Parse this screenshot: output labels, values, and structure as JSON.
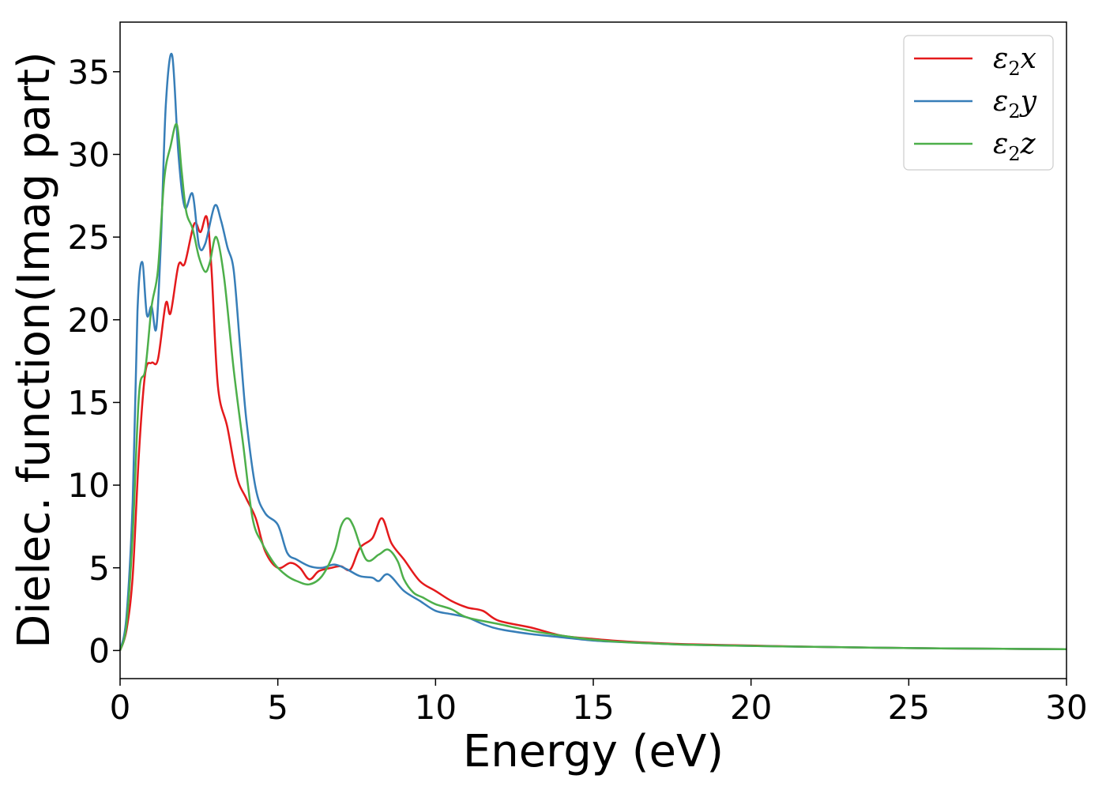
{
  "chart_data": {
    "type": "line",
    "title": "",
    "xlabel": "Energy (eV)",
    "ylabel": "Dielec. function(Imag part)",
    "xlim": [
      0,
      30
    ],
    "ylim": [
      -1.7,
      38
    ],
    "xticks": [
      0,
      5,
      10,
      15,
      20,
      25,
      30
    ],
    "yticks": [
      0,
      5,
      10,
      15,
      20,
      25,
      30,
      35
    ],
    "grid": false,
    "legend": "top-right",
    "series": [
      {
        "name": "ε₂x",
        "legend_base": "ε",
        "legend_sub": "2",
        "legend_var": "x",
        "color": "#e41a1c",
        "x": [
          0,
          0.2,
          0.4,
          0.6,
          0.8,
          1.0,
          1.2,
          1.45,
          1.6,
          1.85,
          2.05,
          2.35,
          2.55,
          2.75,
          2.9,
          3.1,
          3.4,
          3.7,
          4.0,
          4.3,
          4.6,
          5.0,
          5.4,
          5.7,
          6.0,
          6.3,
          6.7,
          7.0,
          7.3,
          7.6,
          8.0,
          8.3,
          8.6,
          9.0,
          9.5,
          10.0,
          10.5,
          11.0,
          11.5,
          12.0,
          13.0,
          14.0,
          15.0,
          16.0,
          17.0,
          18.0,
          20.0,
          22.0,
          24.0,
          26.0,
          28.0,
          30.0
        ],
        "y": [
          0.0,
          1.2,
          4.5,
          12.0,
          16.8,
          17.4,
          17.6,
          21.0,
          20.4,
          23.3,
          23.4,
          25.8,
          25.3,
          26.2,
          23.0,
          16.0,
          13.5,
          10.5,
          9.2,
          8.0,
          6.0,
          5.0,
          5.3,
          5.0,
          4.3,
          4.8,
          5.0,
          5.1,
          4.9,
          6.2,
          6.8,
          8.0,
          6.5,
          5.5,
          4.2,
          3.6,
          3.0,
          2.6,
          2.4,
          1.8,
          1.4,
          0.9,
          0.7,
          0.55,
          0.45,
          0.38,
          0.3,
          0.22,
          0.17,
          0.13,
          0.1,
          0.08
        ]
      },
      {
        "name": "ε₂y",
        "legend_base": "ε",
        "legend_sub": "2",
        "legend_var": "y",
        "color": "#377eb8",
        "x": [
          0,
          0.2,
          0.4,
          0.55,
          0.7,
          0.85,
          1.0,
          1.15,
          1.3,
          1.45,
          1.65,
          1.85,
          2.05,
          2.3,
          2.5,
          2.7,
          3.0,
          3.2,
          3.4,
          3.6,
          3.8,
          4.0,
          4.3,
          4.6,
          5.0,
          5.3,
          5.6,
          6.0,
          6.4,
          6.8,
          7.2,
          7.6,
          8.0,
          8.2,
          8.5,
          9.0,
          9.5,
          10.0,
          10.5,
          11.0,
          11.5,
          12.0,
          13.0,
          14.0,
          15.0,
          16.0,
          17.0,
          18.0,
          20.0,
          22.0,
          24.0,
          26.0,
          28.0,
          30.0
        ],
        "y": [
          0.0,
          2.0,
          9.0,
          20.5,
          23.5,
          20.3,
          20.8,
          19.5,
          25.0,
          33.0,
          36.0,
          30.0,
          26.8,
          27.6,
          24.5,
          24.6,
          26.9,
          26.0,
          24.4,
          23.0,
          18.5,
          14.0,
          9.8,
          8.3,
          7.6,
          5.9,
          5.5,
          5.1,
          5.0,
          5.2,
          4.9,
          4.5,
          4.4,
          4.2,
          4.6,
          3.6,
          3.0,
          2.4,
          2.2,
          2.0,
          1.6,
          1.3,
          1.0,
          0.8,
          0.6,
          0.5,
          0.42,
          0.35,
          0.28,
          0.22,
          0.17,
          0.13,
          0.1,
          0.08
        ]
      },
      {
        "name": "ε₂z",
        "legend_base": "ε",
        "legend_sub": "2",
        "legend_var": "z",
        "color": "#4daf4a",
        "x": [
          0,
          0.2,
          0.4,
          0.6,
          0.8,
          1.0,
          1.2,
          1.4,
          1.6,
          1.8,
          1.95,
          2.1,
          2.3,
          2.5,
          2.7,
          2.85,
          3.05,
          3.3,
          3.6,
          3.9,
          4.2,
          4.5,
          4.8,
          5.0,
          5.3,
          5.6,
          6.0,
          6.4,
          6.8,
          7.0,
          7.2,
          7.4,
          7.8,
          8.2,
          8.5,
          8.8,
          9.0,
          9.3,
          9.6,
          10.0,
          10.5,
          11.0,
          12.0,
          13.0,
          14.0,
          15.0,
          16.0,
          17.0,
          18.0,
          20.0,
          22.0,
          24.0,
          26.0,
          28.0,
          30.0
        ],
        "y": [
          0.0,
          1.5,
          7.0,
          15.5,
          17.0,
          20.8,
          23.0,
          28.5,
          30.5,
          31.8,
          29.0,
          26.5,
          25.5,
          23.8,
          22.9,
          23.5,
          25.0,
          22.5,
          17.0,
          12.5,
          8.0,
          6.5,
          5.5,
          5.0,
          4.5,
          4.2,
          4.0,
          4.5,
          6.0,
          7.5,
          8.0,
          7.5,
          5.5,
          5.8,
          6.1,
          5.4,
          4.3,
          3.5,
          3.2,
          2.8,
          2.5,
          2.0,
          1.6,
          1.2,
          0.9,
          0.65,
          0.5,
          0.42,
          0.35,
          0.28,
          0.22,
          0.17,
          0.13,
          0.1,
          0.08
        ]
      }
    ]
  }
}
